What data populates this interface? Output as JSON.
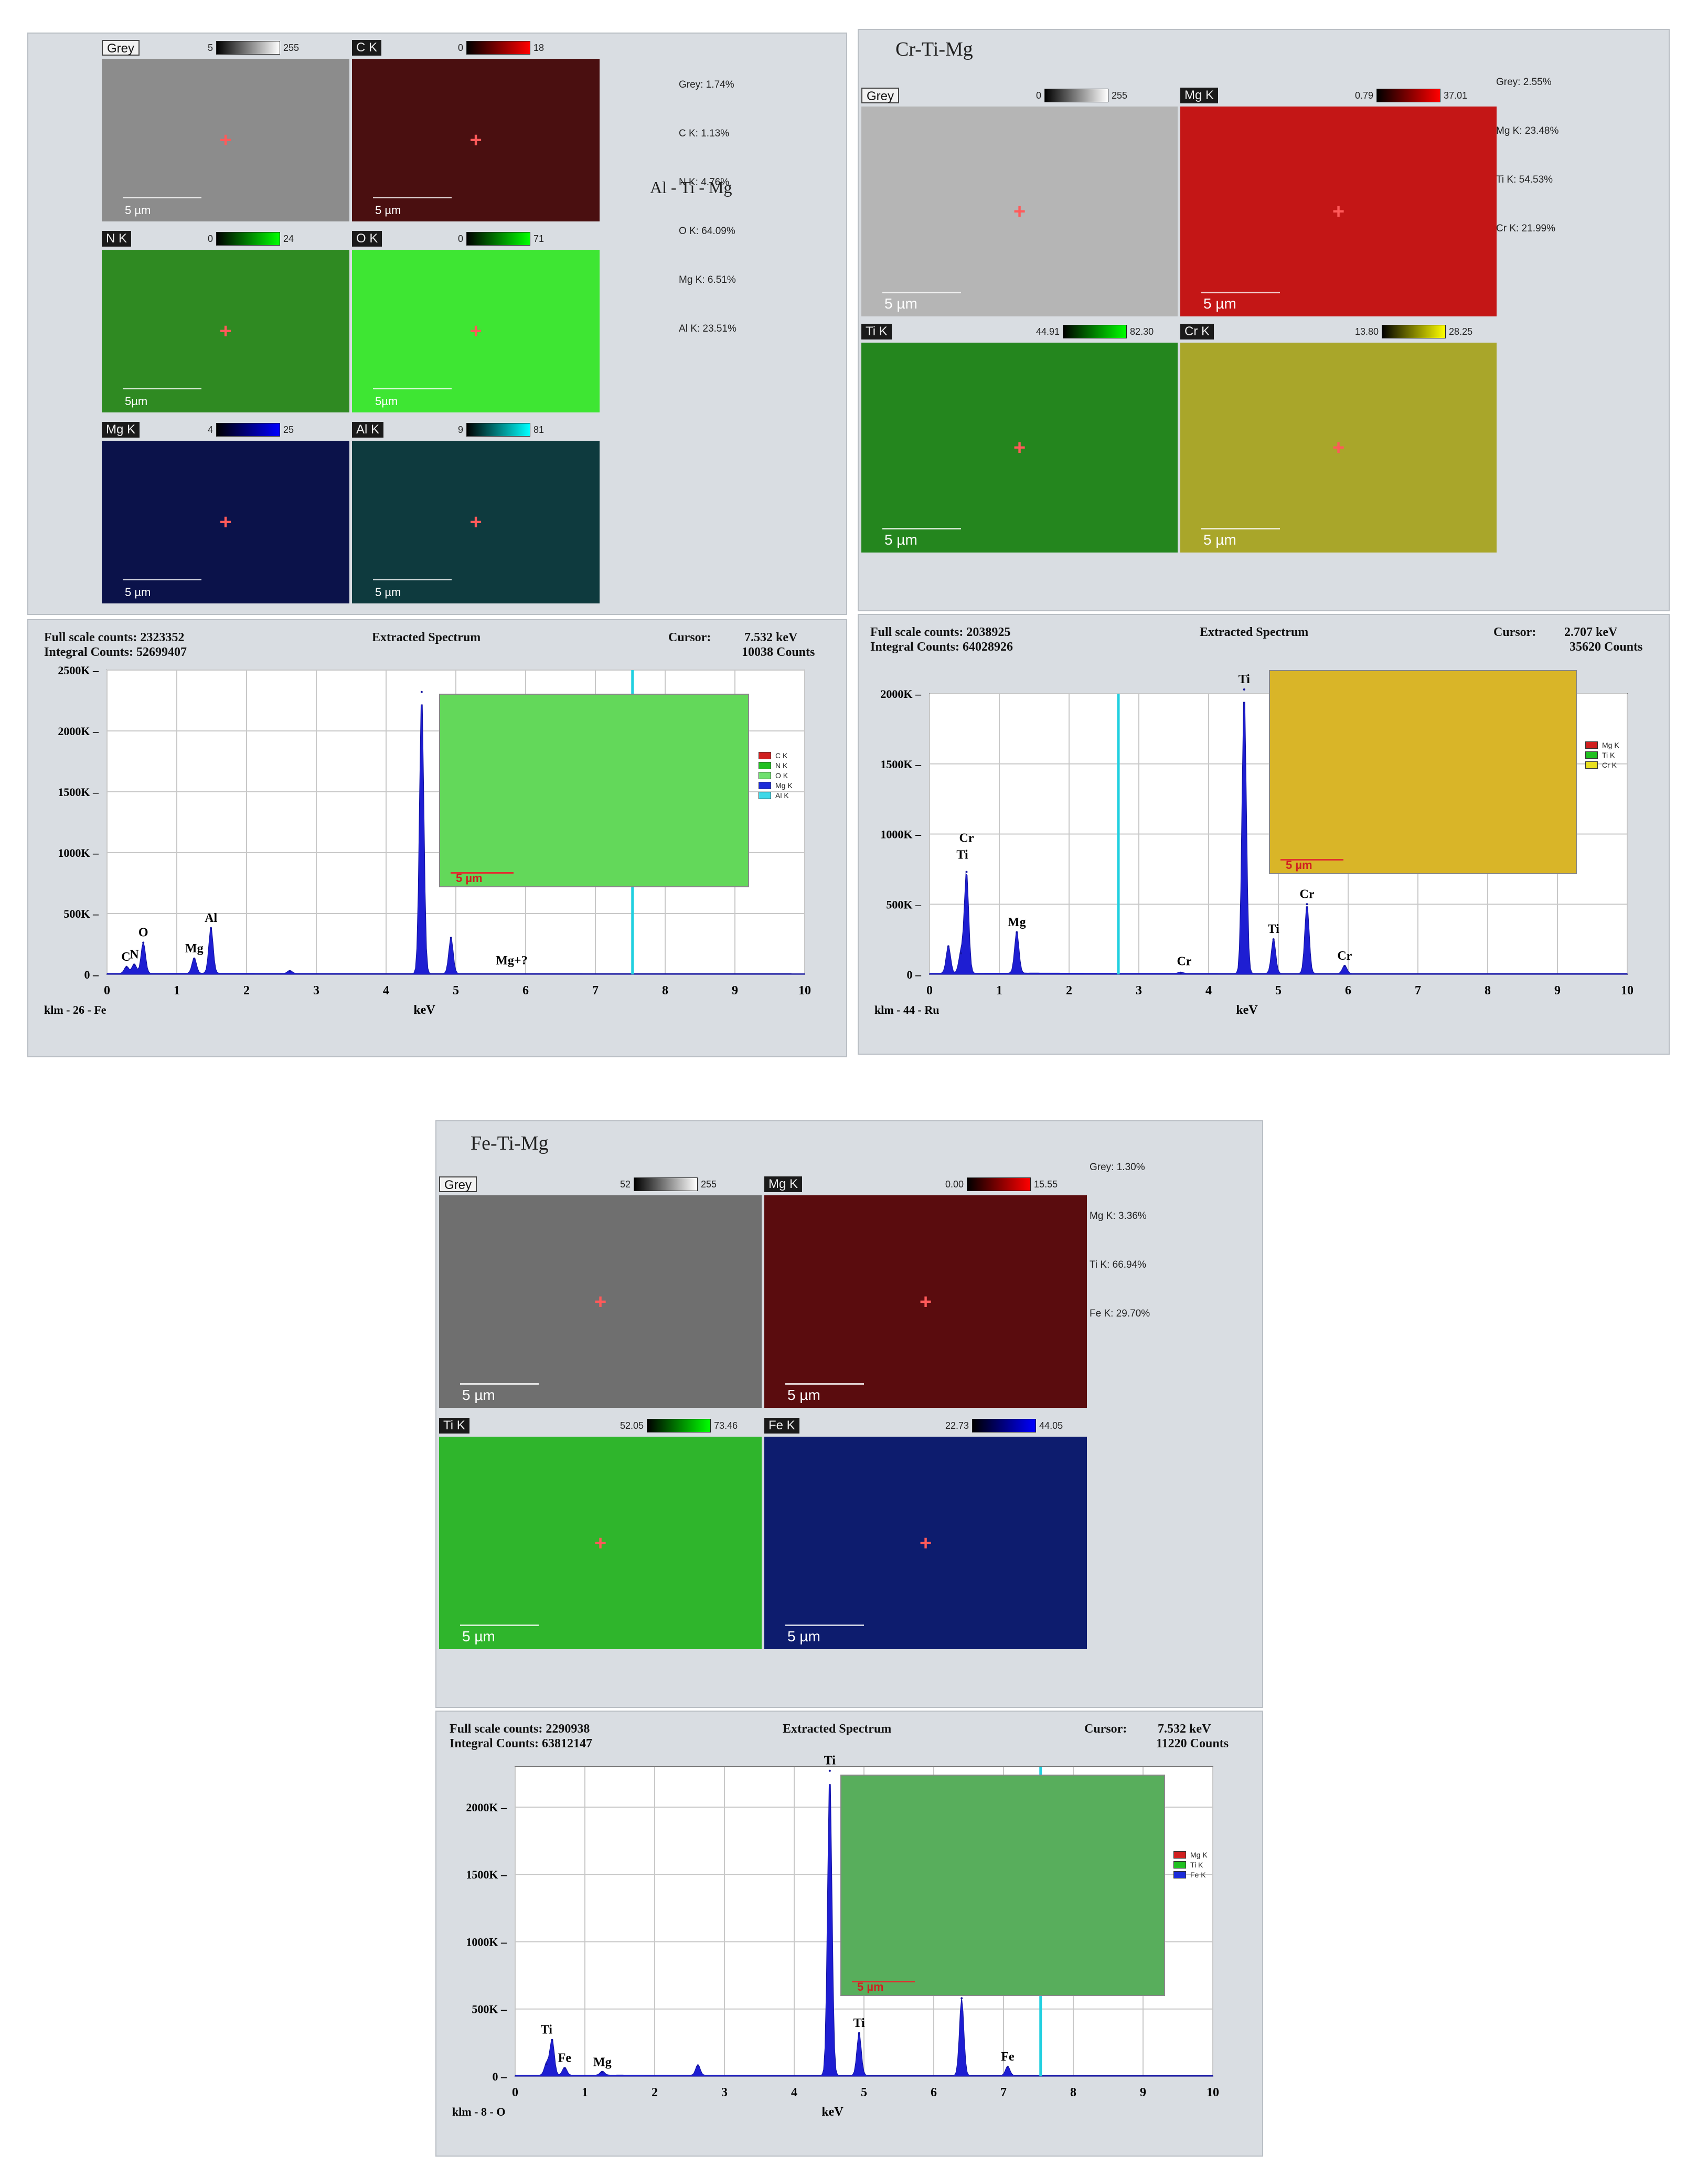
{
  "panels": [
    {
      "id": "altimg",
      "title": "",
      "side_title": "Al - Ti - Mg",
      "percentages": [
        "Grey: 1.74%",
        "C K: 1.13%",
        "N K: 4.76%",
        "O K: 64.09%",
        "Mg K: 6.51%",
        "Al K: 23.51%"
      ],
      "maps": [
        {
          "label": "Grey",
          "style": "grey",
          "range_min": "5",
          "range_max": "255",
          "colors": [
            "#000000",
            "#ffffff"
          ],
          "scale_text": "5 µm",
          "fill": "#8c8c8c"
        },
        {
          "label": "C K",
          "style": "dark",
          "range_min": "0",
          "range_max": "18",
          "colors": [
            "#000000",
            "#ff0000"
          ],
          "scale_text": "5 µm",
          "fill": "#4a0f10"
        },
        {
          "label": "N K",
          "style": "dark",
          "range_min": "0",
          "range_max": "24",
          "colors": [
            "#000000",
            "#00ff00"
          ],
          "scale_text": "5µm",
          "fill": "#2f8a22"
        },
        {
          "label": "O K",
          "style": "dark",
          "range_min": "0",
          "range_max": "71",
          "colors": [
            "#000000",
            "#00ff00"
          ],
          "scale_text": "5µm",
          "fill": "#3ee633"
        },
        {
          "label": "Mg K",
          "style": "dark",
          "range_min": "4",
          "range_max": "25",
          "colors": [
            "#000000",
            "#0000ff"
          ],
          "scale_text": "5 µm",
          "fill": "#0b124a"
        },
        {
          "label": "Al K",
          "style": "dark",
          "range_min": "9",
          "range_max": "81",
          "colors": [
            "#000000",
            "#00ffff"
          ],
          "scale_text": "5 µm",
          "fill": "#0e3a3e"
        }
      ]
    },
    {
      "id": "crtimg",
      "title": "Cr-Ti-Mg",
      "side_title": "",
      "percentages": [
        "Grey: 2.55%",
        "Mg K: 23.48%",
        "Ti K: 54.53%",
        "Cr K: 21.99%"
      ],
      "maps": [
        {
          "label": "Grey",
          "style": "grey",
          "range_min": "0",
          "range_max": "255",
          "colors": [
            "#000000",
            "#ffffff"
          ],
          "scale_text": "5 µm",
          "fill": "#b5b5b5"
        },
        {
          "label": "Mg K",
          "style": "dark",
          "range_min": "0.79",
          "range_max": "37.01",
          "colors": [
            "#000000",
            "#ff0000"
          ],
          "scale_text": "5 µm",
          "fill": "#c41616"
        },
        {
          "label": "Ti K",
          "style": "dark",
          "range_min": "44.91",
          "range_max": "82.30",
          "colors": [
            "#000000",
            "#00ff00"
          ],
          "scale_text": "5 µm",
          "fill": "#24861e"
        },
        {
          "label": "Cr K",
          "style": "dark",
          "range_min": "13.80",
          "range_max": "28.25",
          "colors": [
            "#000000",
            "#ffff00"
          ],
          "scale_text": "5 µm",
          "fill": "#a9a62a"
        }
      ]
    },
    {
      "id": "fetimg",
      "title": "Fe-Ti-Mg",
      "side_title": "",
      "percentages": [
        "Grey: 1.30%",
        "Mg K: 3.36%",
        "Ti K: 66.94%",
        "Fe K: 29.70%"
      ],
      "maps": [
        {
          "label": "Grey",
          "style": "grey",
          "range_min": "52",
          "range_max": "255",
          "colors": [
            "#000000",
            "#ffffff"
          ],
          "scale_text": "5 µm",
          "fill": "#6f6f6f"
        },
        {
          "label": "Mg K",
          "style": "dark",
          "range_min": "0.00",
          "range_max": "15.55",
          "colors": [
            "#000000",
            "#ff0000"
          ],
          "scale_text": "5 µm",
          "fill": "#5a0c0e"
        },
        {
          "label": "Ti K",
          "style": "dark",
          "range_min": "52.05",
          "range_max": "73.46",
          "colors": [
            "#000000",
            "#00ff00"
          ],
          "scale_text": "5 µm",
          "fill": "#2fb52c"
        },
        {
          "label": "Fe K",
          "style": "dark",
          "range_min": "22.73",
          "range_max": "44.05",
          "colors": [
            "#000000",
            "#0000ff"
          ],
          "scale_text": "5 µm",
          "fill": "#0d1c6e"
        }
      ]
    }
  ],
  "spectra_header": {
    "title": "Extracted Spectrum",
    "cursor_label": "Cursor:"
  },
  "chart_data": [
    {
      "type": "area",
      "full_scale": "Full scale counts: 2323352",
      "integral": "Integral Counts: 52699407",
      "cursor_kev": "7.532 keV",
      "cursor_counts": "10038 Counts",
      "sample_label": "klm - 26 - Fe",
      "xlabel": "keV",
      "xlim": [
        0,
        10
      ],
      "ylim": [
        0,
        2500000
      ],
      "yticks": [
        0,
        500000,
        1000000,
        1500000,
        2000000,
        2500000
      ],
      "ytick_labels": [
        "0",
        "500K",
        "1000K",
        "1500K",
        "2000K",
        "2500K"
      ],
      "xticks": [
        0,
        1,
        2,
        3,
        4,
        5,
        6,
        7,
        8,
        9,
        10
      ],
      "cursor_x": 7.532,
      "peaks": [
        {
          "x": 0.28,
          "y": 60000
        },
        {
          "x": 0.39,
          "y": 80000
        },
        {
          "x": 0.52,
          "y": 260000
        },
        {
          "x": 1.25,
          "y": 130000
        },
        {
          "x": 1.49,
          "y": 380000
        },
        {
          "x": 4.51,
          "y": 2320000
        },
        {
          "x": 4.93,
          "y": 300000
        },
        {
          "x": 2.62,
          "y": 25000
        }
      ],
      "peak_labels": [
        {
          "text": "C",
          "x": 0.27,
          "y": 60000
        },
        {
          "text": "N",
          "x": 0.39,
          "y": 80000
        },
        {
          "text": "O",
          "x": 0.52,
          "y": 260000
        },
        {
          "text": "Mg",
          "x": 1.25,
          "y": 130000
        },
        {
          "text": "Al",
          "x": 1.49,
          "y": 380000
        },
        {
          "text": "Mg+?",
          "x": 5.8,
          "y": 30000
        }
      ],
      "legend": [
        {
          "name": "C K",
          "color": "#d02020"
        },
        {
          "name": "N K",
          "color": "#20c020"
        },
        {
          "name": "O K",
          "color": "#70e070"
        },
        {
          "name": "Mg K",
          "color": "#1c2cd8"
        },
        {
          "name": "Al K",
          "color": "#40d8e8"
        }
      ],
      "inset_fill": "#63d85a",
      "inset_scale": "5 µm"
    },
    {
      "type": "area",
      "full_scale": "Full scale counts: 2038925",
      "integral": "Integral Counts: 64028926",
      "cursor_kev": "2.707 keV",
      "cursor_counts": "35620 Counts",
      "sample_label": "klm - 44 - Ru",
      "xlabel": "keV",
      "xlim": [
        0,
        10
      ],
      "ylim": [
        0,
        2000000
      ],
      "yticks": [
        0,
        500000,
        1000000,
        1500000,
        2000000
      ],
      "ytick_labels": [
        "0",
        "500K",
        "1000K",
        "1500K",
        "2000K"
      ],
      "xticks": [
        0,
        1,
        2,
        3,
        4,
        5,
        6,
        7,
        8,
        9,
        10
      ],
      "cursor_x": 2.707,
      "peaks": [
        {
          "x": 0.27,
          "y": 200000
        },
        {
          "x": 0.45,
          "y": 150000
        },
        {
          "x": 0.53,
          "y": 730000
        },
        {
          "x": 1.25,
          "y": 300000
        },
        {
          "x": 4.51,
          "y": 2030000
        },
        {
          "x": 4.93,
          "y": 250000
        },
        {
          "x": 5.41,
          "y": 500000
        },
        {
          "x": 5.95,
          "y": 60000
        },
        {
          "x": 3.6,
          "y": 10000
        }
      ],
      "peak_labels": [
        {
          "text": "Cr",
          "x": 0.53,
          "y": 900000
        },
        {
          "text": "Ti",
          "x": 0.47,
          "y": 780000
        },
        {
          "text": "Mg",
          "x": 1.25,
          "y": 300000
        },
        {
          "text": "Cr",
          "x": 3.65,
          "y": 20000
        },
        {
          "text": "Ti",
          "x": 4.51,
          "y": 2030000
        },
        {
          "text": "Ti",
          "x": 4.93,
          "y": 250000
        },
        {
          "text": "Cr",
          "x": 5.41,
          "y": 500000
        },
        {
          "text": "Cr",
          "x": 5.95,
          "y": 60000
        }
      ],
      "legend": [
        {
          "name": "Mg K",
          "color": "#d02020"
        },
        {
          "name": "Ti K",
          "color": "#20c020"
        },
        {
          "name": "Cr K",
          "color": "#e8e020"
        }
      ],
      "inset_fill": "#d9b528",
      "inset_scale": "5 µm"
    },
    {
      "type": "area",
      "full_scale": "Full scale counts: 2290938",
      "integral": "Integral Counts: 63812147",
      "cursor_kev": "7.532 keV",
      "cursor_counts": "11220 Counts",
      "sample_label": "klm - 8 - O",
      "xlabel": "keV",
      "xlim": [
        0,
        10
      ],
      "ylim": [
        0,
        2300000
      ],
      "yticks": [
        0,
        500000,
        1000000,
        1500000,
        2000000
      ],
      "ytick_labels": [
        "0",
        "500K",
        "1000K",
        "1500K",
        "2000K"
      ],
      "xticks": [
        0,
        1,
        2,
        3,
        4,
        5,
        6,
        7,
        8,
        9,
        10
      ],
      "cursor_x": 7.532,
      "peaks": [
        {
          "x": 0.45,
          "y": 90000
        },
        {
          "x": 0.53,
          "y": 270000
        },
        {
          "x": 0.71,
          "y": 60000
        },
        {
          "x": 1.25,
          "y": 30000
        },
        {
          "x": 2.62,
          "y": 80000
        },
        {
          "x": 4.51,
          "y": 2270000
        },
        {
          "x": 4.93,
          "y": 320000
        },
        {
          "x": 6.4,
          "y": 580000
        },
        {
          "x": 7.06,
          "y": 70000
        }
      ],
      "peak_labels": [
        {
          "text": "Ti",
          "x": 0.45,
          "y": 270000
        },
        {
          "text": "Fe",
          "x": 0.71,
          "y": 60000
        },
        {
          "text": "Mg",
          "x": 1.25,
          "y": 30000
        },
        {
          "text": "Ti",
          "x": 4.51,
          "y": 2270000
        },
        {
          "text": "Ti",
          "x": 4.93,
          "y": 320000
        },
        {
          "text": "Fe",
          "x": 7.06,
          "y": 70000
        }
      ],
      "legend": [
        {
          "name": "Mg K",
          "color": "#d02020"
        },
        {
          "name": "Ti K",
          "color": "#20c020"
        },
        {
          "name": "Fe K",
          "color": "#1c2cd8"
        }
      ],
      "inset_fill": "#58ae5c",
      "inset_scale": "5 µm"
    }
  ]
}
